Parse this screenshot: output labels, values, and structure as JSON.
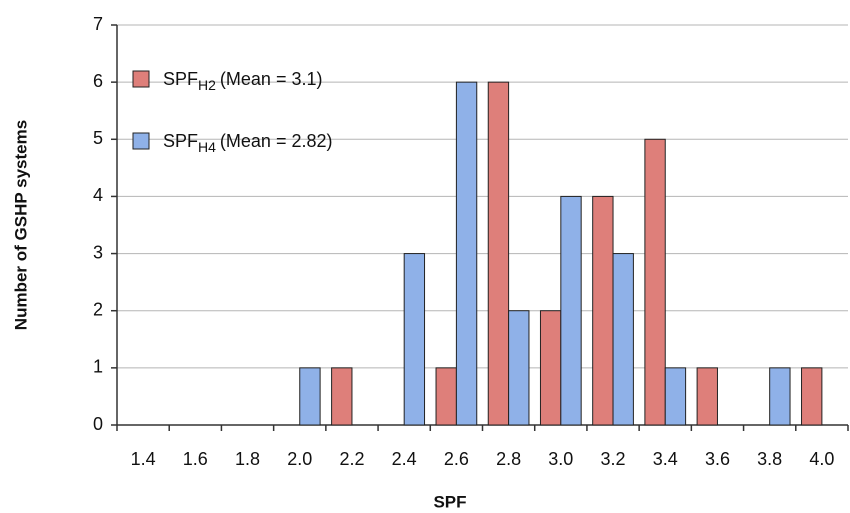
{
  "chart_data": {
    "type": "bar",
    "x_label": "SPF",
    "y_label": "Number of GSHP systems",
    "categories": [
      "1.4",
      "1.6",
      "1.8",
      "2.0",
      "2.2",
      "2.4",
      "2.6",
      "2.8",
      "3.0",
      "3.2",
      "3.4",
      "3.6",
      "3.8",
      "4.0"
    ],
    "series": [
      {
        "name": "SPF",
        "subscript": "H2",
        "mean_label": "(Mean = 3.1)",
        "color": "#de7f7a",
        "values": [
          0,
          0,
          0,
          0,
          1,
          0,
          1,
          6,
          2,
          4,
          5,
          1,
          0,
          1
        ]
      },
      {
        "name": "SPF",
        "subscript": "H4",
        "mean_label": "(Mean = 2.82)",
        "color": "#8fb1e8",
        "values": [
          0,
          0,
          0,
          1,
          0,
          3,
          6,
          2,
          4,
          3,
          1,
          0,
          1,
          0
        ]
      }
    ],
    "ylim": [
      0,
      7
    ],
    "yticks": [
      0,
      1,
      2,
      3,
      4,
      5,
      6,
      7
    ],
    "grid": true,
    "legend": "upper left"
  }
}
